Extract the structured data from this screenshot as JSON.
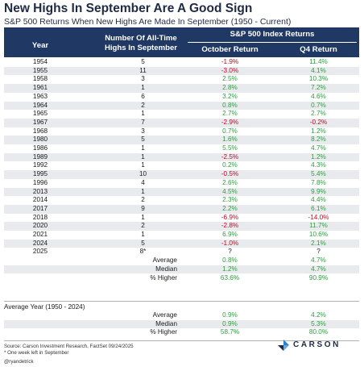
{
  "title": "New Highs In September Are A Good Sign",
  "subtitle": "S&P 500 Returns When New Highs Are Made In September (1950 - Current)",
  "header": {
    "year": "Year",
    "num_line1": "Number Of All-Time",
    "num_line2": "Highs In September",
    "group": "S&P 500 Index Returns",
    "oct": "October Return",
    "q4": "Q4 Return"
  },
  "chart_data": {
    "type": "table",
    "columns": [
      "Year",
      "Number Of All-Time Highs In September",
      "October Return",
      "Q4 Return"
    ],
    "rows": [
      {
        "year": "1954",
        "num": "5",
        "oct": "-1.9%",
        "q4": "11.4%"
      },
      {
        "year": "1955",
        "num": "11",
        "oct": "-3.0%",
        "q4": "4.1%"
      },
      {
        "year": "1958",
        "num": "3",
        "oct": "2.5%",
        "q4": "10.3%"
      },
      {
        "year": "1961",
        "num": "1",
        "oct": "2.8%",
        "q4": "7.2%"
      },
      {
        "year": "1963",
        "num": "6",
        "oct": "3.2%",
        "q4": "4.6%"
      },
      {
        "year": "1964",
        "num": "2",
        "oct": "0.8%",
        "q4": "0.7%"
      },
      {
        "year": "1965",
        "num": "1",
        "oct": "2.7%",
        "q4": "2.7%"
      },
      {
        "year": "1967",
        "num": "7",
        "oct": "-2.9%",
        "q4": "-0.2%"
      },
      {
        "year": "1968",
        "num": "3",
        "oct": "0.7%",
        "q4": "1.2%"
      },
      {
        "year": "1980",
        "num": "5",
        "oct": "1.6%",
        "q4": "8.2%"
      },
      {
        "year": "1986",
        "num": "1",
        "oct": "5.5%",
        "q4": "4.7%"
      },
      {
        "year": "1989",
        "num": "1",
        "oct": "-2.5%",
        "q4": "1.2%"
      },
      {
        "year": "1992",
        "num": "1",
        "oct": "0.2%",
        "q4": "4.3%"
      },
      {
        "year": "1995",
        "num": "10",
        "oct": "-0.5%",
        "q4": "5.4%"
      },
      {
        "year": "1996",
        "num": "4",
        "oct": "2.6%",
        "q4": "7.8%"
      },
      {
        "year": "2013",
        "num": "1",
        "oct": "4.5%",
        "q4": "9.9%"
      },
      {
        "year": "2014",
        "num": "2",
        "oct": "2.3%",
        "q4": "4.4%"
      },
      {
        "year": "2017",
        "num": "9",
        "oct": "2.2%",
        "q4": "6.1%"
      },
      {
        "year": "2018",
        "num": "1",
        "oct": "-6.9%",
        "q4": "-14.0%"
      },
      {
        "year": "2020",
        "num": "2",
        "oct": "-2.8%",
        "q4": "11.7%"
      },
      {
        "year": "2021",
        "num": "1",
        "oct": "6.9%",
        "q4": "10.6%"
      },
      {
        "year": "2024",
        "num": "5",
        "oct": "-1.0%",
        "q4": "2.1%"
      },
      {
        "year": "2025",
        "num": "8*",
        "oct": "?",
        "q4": "?"
      }
    ],
    "summary": [
      {
        "label": "Average",
        "oct": "0.8%",
        "q4": "4.7%"
      },
      {
        "label": "Median",
        "oct": "1.2%",
        "q4": "4.7%"
      },
      {
        "label": "% Higher",
        "oct": "63.6%",
        "q4": "90.9%"
      }
    ],
    "average_year_title": "Average Year (1950 - 2024)",
    "average_year": [
      {
        "label": "Average",
        "oct": "0.9%",
        "q4": "4.2%"
      },
      {
        "label": "Median",
        "oct": "0.9%",
        "q4": "5.3%"
      },
      {
        "label": "% Higher",
        "oct": "58.7%",
        "q4": "80.0%"
      }
    ]
  },
  "footer": {
    "source": "Source: Carson Investment Research, FactSet 09/24/2025",
    "note": "* One week left in September",
    "handle": "@ryandetrick",
    "logo": "CARSON"
  },
  "colors": {
    "header_bg": "#1f3864",
    "negative": "#d0021b",
    "positive": "#2e9e3e",
    "logo_accent": "#2f80c9"
  }
}
